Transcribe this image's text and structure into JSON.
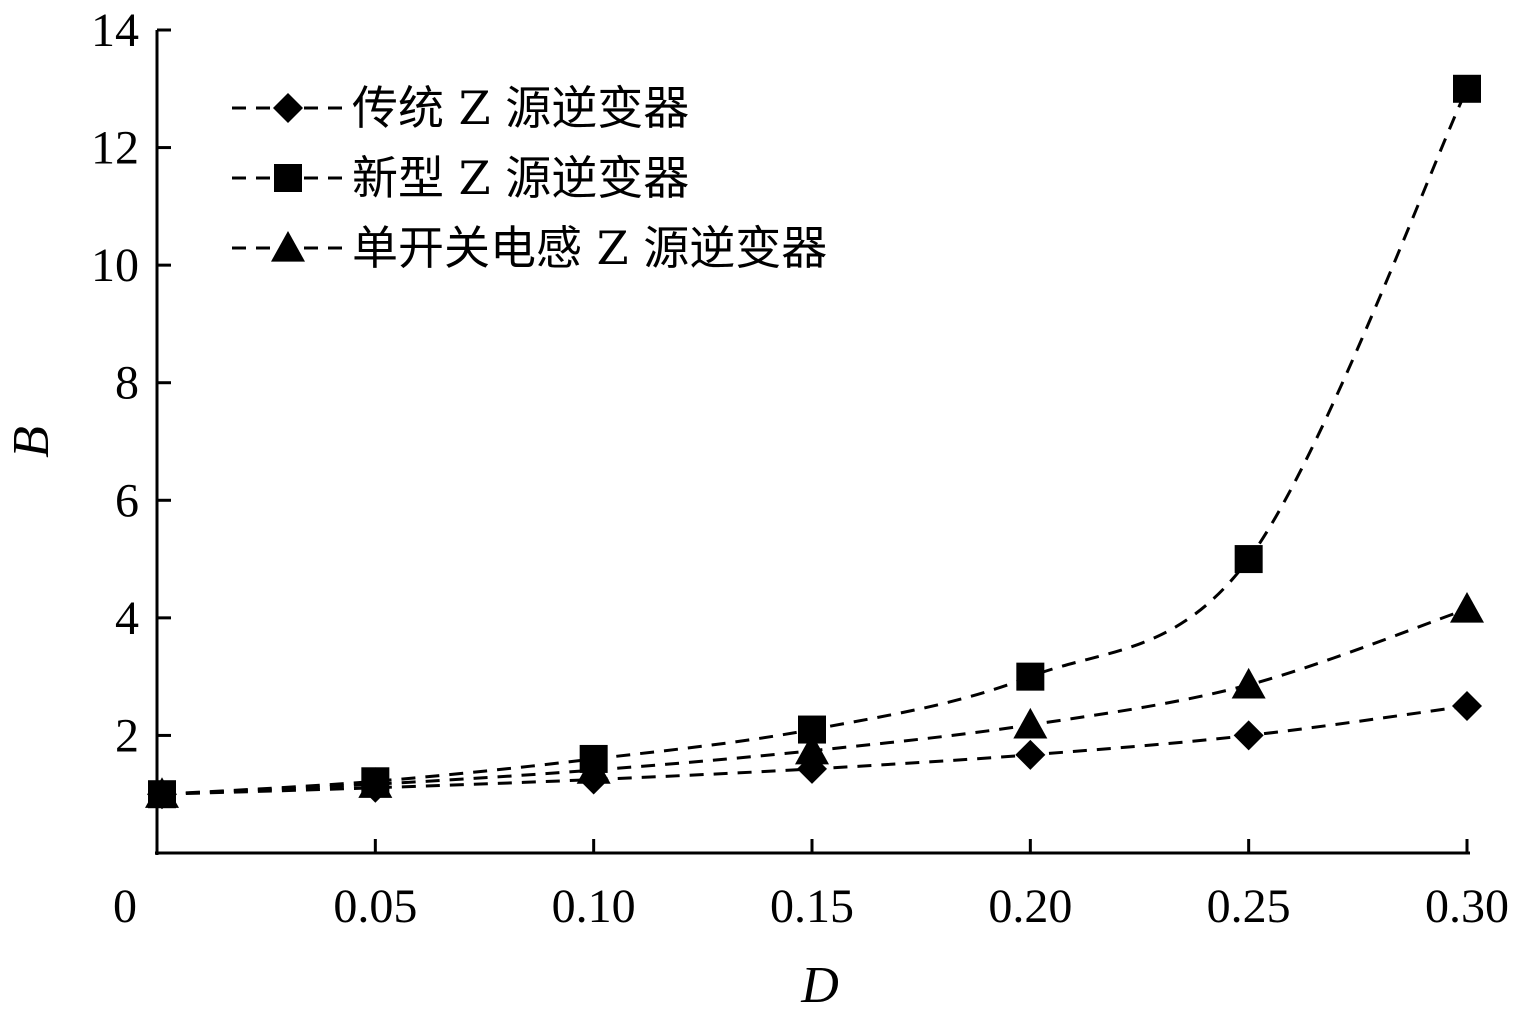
{
  "chart_data": {
    "type": "line",
    "x": [
      0,
      0.05,
      0.1,
      0.15,
      0.2,
      0.25,
      0.3
    ],
    "x_tick_labels": [
      "0",
      "0.05",
      "0.10",
      "0.15",
      "0.20",
      "0.25",
      "0.30"
    ],
    "y_ticks": [
      2,
      4,
      6,
      8,
      10,
      12,
      14
    ],
    "y_tick_labels": [
      "2",
      "4",
      "6",
      "8",
      "10",
      "12",
      "14"
    ],
    "xlabel": "D",
    "ylabel": "B",
    "xlim": [
      0,
      0.3
    ],
    "ylim": [
      0,
      14
    ],
    "grid": false,
    "legend_position": "top-left",
    "series": [
      {
        "name": "传统 Z 源逆变器",
        "marker": "diamond",
        "values": [
          1.0,
          1.11,
          1.25,
          1.43,
          1.67,
          2.0,
          2.5
        ]
      },
      {
        "name": "新型 Z 源逆变器",
        "marker": "square",
        "values": [
          1.0,
          1.22,
          1.6,
          2.1,
          3.0,
          5.0,
          13.0
        ]
      },
      {
        "name": "单开关电感 Z 源逆变器",
        "marker": "triangle",
        "values": [
          1.0,
          1.17,
          1.41,
          1.74,
          2.18,
          2.86,
          4.15
        ]
      }
    ]
  }
}
